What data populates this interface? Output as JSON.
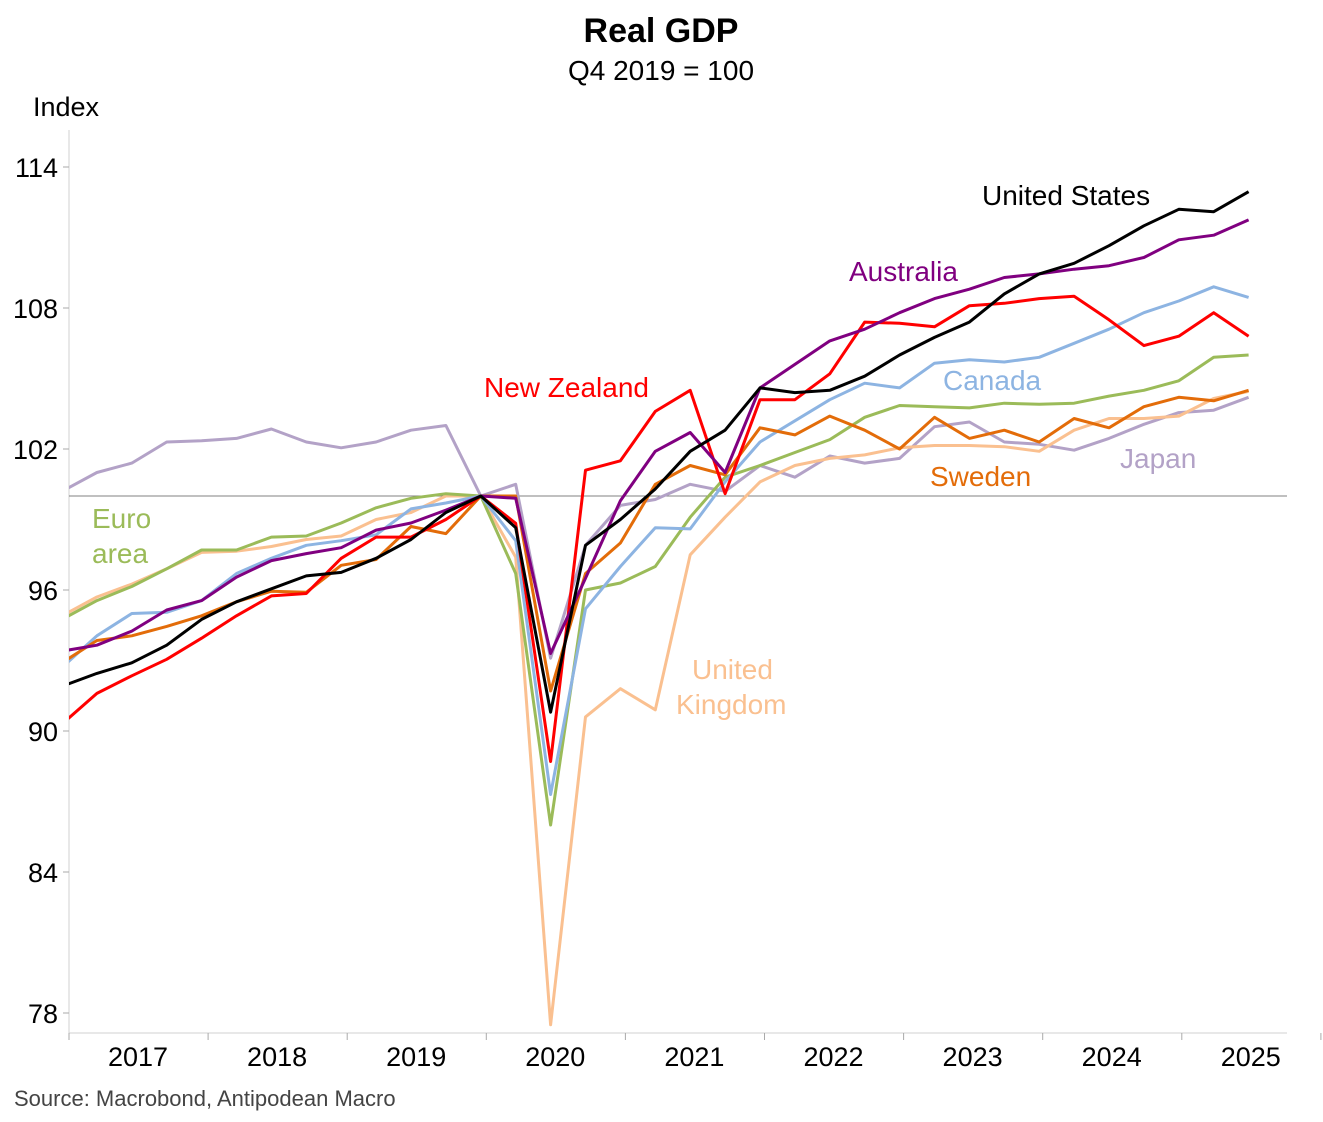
{
  "chart_data": {
    "type": "line",
    "title": "Real GDP",
    "subtitle": "Q4 2019 = 100",
    "ylabel": "Index",
    "xlabel": "",
    "source": "Source: Macrobond, Antipodean Macro",
    "ylim": [
      78,
      116
    ],
    "yticks": [
      78,
      84,
      90,
      96,
      102,
      108,
      114
    ],
    "reference_line": 100,
    "x_tick_labels": [
      "2017",
      "2018",
      "2019",
      "2020",
      "2021",
      "2022",
      "2023",
      "2024",
      "2025"
    ],
    "x": [
      "2016Q4",
      "2017Q1",
      "2017Q2",
      "2017Q3",
      "2017Q4",
      "2018Q1",
      "2018Q2",
      "2018Q3",
      "2018Q4",
      "2019Q1",
      "2019Q2",
      "2019Q3",
      "2019Q4",
      "2020Q1",
      "2020Q2",
      "2020Q3",
      "2020Q4",
      "2021Q1",
      "2021Q2",
      "2021Q3",
      "2021Q4",
      "2022Q1",
      "2022Q2",
      "2022Q3",
      "2022Q4",
      "2023Q1",
      "2023Q2",
      "2023Q3",
      "2023Q4",
      "2024Q1",
      "2024Q2",
      "2024Q3",
      "2024Q4",
      "2025Q1",
      "2025Q2"
    ],
    "grid": false,
    "legend": "inline labels",
    "series": [
      {
        "name": "Japan",
        "label_lines": [
          "Japan"
        ],
        "color": "#b3a2c7",
        "values": [
          100.2,
          101.0,
          101.4,
          102.3,
          102.35,
          102.45,
          102.85,
          102.3,
          102.05,
          102.3,
          102.8,
          103.0,
          100,
          100.5,
          93.1,
          97.9,
          99.6,
          99.85,
          100.5,
          100.2,
          101.3,
          100.8,
          101.7,
          101.4,
          101.6,
          102.95,
          103.15,
          102.3,
          102.2,
          101.95,
          102.45,
          103.05,
          103.55,
          103.65,
          104.2
        ]
      },
      {
        "name": "United Kingdom",
        "label_lines": [
          "United",
          "Kingdom"
        ],
        "color": "#fac090",
        "values": [
          94.9,
          95.7,
          96.25,
          96.9,
          97.6,
          97.65,
          97.85,
          98.15,
          98.3,
          99.0,
          99.3,
          100.0,
          100,
          97.4,
          77.5,
          90.6,
          91.8,
          90.9,
          97.5,
          99.1,
          100.6,
          101.3,
          101.6,
          101.75,
          102.05,
          102.15,
          102.15,
          102.1,
          101.9,
          102.8,
          103.3,
          103.3,
          103.4,
          104.15,
          104.45
        ]
      },
      {
        "name": "Euro area",
        "label_lines": [
          "Euro",
          "area"
        ],
        "color": "#9bbb59",
        "values": [
          94.75,
          95.55,
          96.15,
          96.9,
          97.7,
          97.7,
          98.25,
          98.3,
          98.85,
          99.5,
          99.9,
          100.1,
          100,
          96.7,
          86.0,
          96.0,
          96.3,
          97.0,
          99.1,
          100.8,
          101.3,
          101.85,
          102.4,
          103.35,
          103.85,
          103.8,
          103.75,
          103.95,
          103.9,
          103.95,
          104.25,
          104.5,
          104.9,
          105.9,
          106.0
        ]
      },
      {
        "name": "Canada",
        "label_lines": [
          "Canada"
        ],
        "color": "#8db4e2",
        "values": [
          92.7,
          94.05,
          95.0,
          95.05,
          95.55,
          96.7,
          97.35,
          97.9,
          98.1,
          98.35,
          99.45,
          99.7,
          100,
          98.1,
          87.3,
          95.2,
          97.0,
          98.65,
          98.6,
          100.6,
          102.3,
          103.2,
          104.1,
          104.8,
          104.6,
          105.65,
          105.8,
          105.7,
          105.9,
          106.5,
          107.1,
          107.8,
          108.3,
          108.9,
          108.45
        ]
      },
      {
        "name": "Sweden",
        "label_lines": [
          "Sweden"
        ],
        "color": "#e36c09",
        "values": [
          92.9,
          93.85,
          94.05,
          94.45,
          94.9,
          95.5,
          95.95,
          95.9,
          97.05,
          97.3,
          98.7,
          98.4,
          100,
          100.0,
          91.7,
          96.7,
          98.0,
          100.5,
          101.3,
          100.9,
          102.9,
          102.6,
          103.4,
          102.8,
          102.0,
          103.35,
          102.45,
          102.8,
          102.3,
          103.3,
          102.9,
          103.8,
          104.2,
          104.05,
          104.5
        ]
      },
      {
        "name": "New Zealand",
        "label_lines": [
          "New Zealand"
        ],
        "color": "#ff0000",
        "values": [
          90.3,
          91.6,
          92.35,
          93.05,
          93.95,
          94.9,
          95.75,
          95.85,
          97.35,
          98.25,
          98.25,
          99.0,
          100,
          98.84,
          88.7,
          101.1,
          101.5,
          103.6,
          104.5,
          100.1,
          104.1,
          104.1,
          105.2,
          107.4,
          107.35,
          107.2,
          108.1,
          108.2,
          108.4,
          108.5,
          107.5,
          106.4,
          106.8,
          107.8,
          106.8
        ]
      },
      {
        "name": "Australia",
        "label_lines": [
          "Australia"
        ],
        "color": "#800080",
        "values": [
          93.4,
          93.65,
          94.25,
          95.15,
          95.55,
          96.55,
          97.25,
          97.55,
          97.8,
          98.55,
          98.85,
          99.4,
          100,
          99.9,
          93.3,
          96.5,
          99.8,
          101.9,
          102.7,
          101.0,
          104.6,
          105.6,
          106.6,
          107.1,
          107.8,
          108.4,
          108.8,
          109.3,
          109.45,
          109.65,
          109.8,
          110.15,
          110.9,
          111.1,
          111.75
        ]
      },
      {
        "name": "United States",
        "label_lines": [
          "United States"
        ],
        "color": "#000000",
        "values": [
          91.9,
          92.45,
          92.9,
          93.65,
          94.75,
          95.5,
          96.05,
          96.6,
          96.75,
          97.35,
          98.15,
          99.3,
          100,
          98.65,
          90.8,
          97.9,
          99.0,
          100.3,
          101.9,
          102.8,
          104.6,
          104.4,
          104.5,
          105.1,
          106.0,
          106.75,
          107.4,
          108.6,
          109.45,
          109.9,
          110.65,
          111.5,
          112.2,
          112.1,
          112.95
        ]
      }
    ]
  }
}
